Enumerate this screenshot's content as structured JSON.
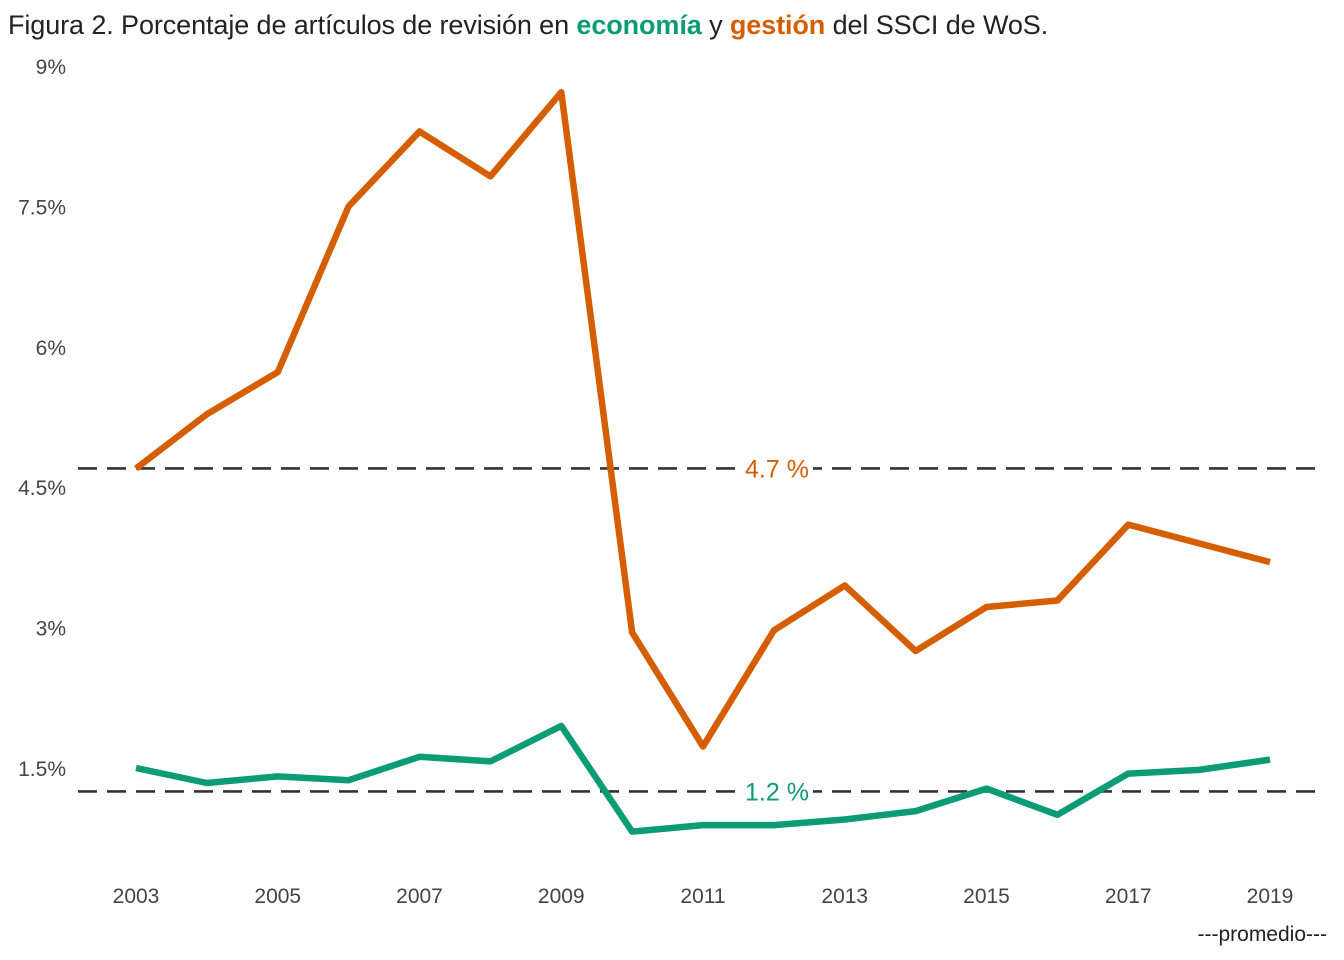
{
  "title": {
    "prefix": "Figura 2. Porcentaje de artículos de revisión en ",
    "series1": "economía",
    "connector": " y ",
    "series2": "gestión",
    "suffix": " del SSCI de WoS."
  },
  "caption": "---promedio---",
  "colors": {
    "economia": "#0b9b75",
    "gestion": "#d55e00",
    "reference": "#333333",
    "text": "#444444"
  },
  "chart_data": {
    "type": "line",
    "title": "Figura 2. Porcentaje de artículos de revisión en economía y gestión del SSCI de WoS.",
    "x": [
      2003,
      2004,
      2005,
      2006,
      2007,
      2008,
      2009,
      2010,
      2011,
      2012,
      2013,
      2014,
      2015,
      2016,
      2017,
      2018,
      2019
    ],
    "x_ticks": [
      "2003",
      "2005",
      "2007",
      "2009",
      "2011",
      "2013",
      "2015",
      "2017",
      "2019"
    ],
    "y_ticks": [
      {
        "value": 1.5,
        "label": "1.5%"
      },
      {
        "value": 3.0,
        "label": "3%"
      },
      {
        "value": 4.5,
        "label": "4.5%"
      },
      {
        "value": 6.0,
        "label": "6%"
      },
      {
        "value": 7.5,
        "label": "7.5%"
      },
      {
        "value": 9.0,
        "label": "9%"
      }
    ],
    "xlim": [
      2003,
      2019
    ],
    "ylim": [
      0.5,
      9.0
    ],
    "grid": false,
    "series": [
      {
        "name": "gestión",
        "color": "#d55e00",
        "values": [
          4.7,
          5.28,
          5.73,
          7.5,
          8.3,
          7.82,
          8.72,
          2.95,
          1.73,
          2.97,
          3.45,
          2.75,
          3.22,
          3.29,
          4.1,
          3.9,
          3.7
        ]
      },
      {
        "name": "economía",
        "color": "#0b9b75",
        "values": [
          1.5,
          1.34,
          1.41,
          1.37,
          1.62,
          1.57,
          1.95,
          0.82,
          0.89,
          0.89,
          0.95,
          1.04,
          1.28,
          1.0,
          1.44,
          1.48,
          1.59
        ]
      }
    ],
    "reference_lines": [
      {
        "value": 4.7,
        "label": "4.7 %",
        "color": "#d55e00"
      },
      {
        "value": 1.25,
        "label": "1.2 %",
        "color": "#0b9b75"
      }
    ]
  }
}
